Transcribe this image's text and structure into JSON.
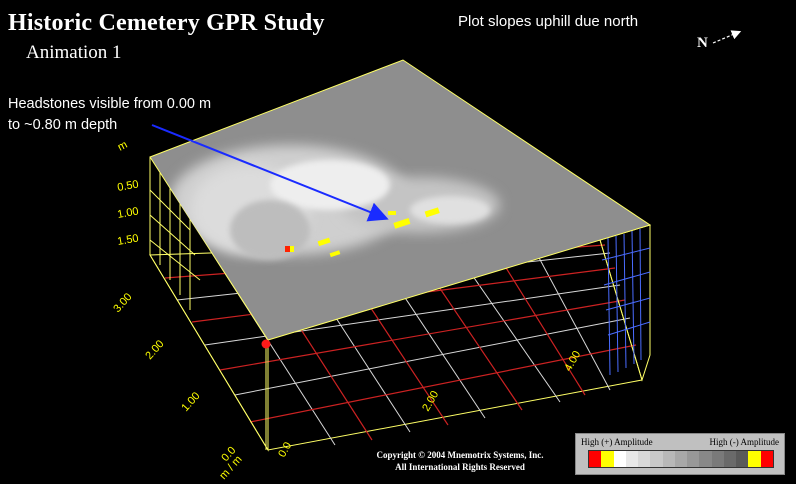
{
  "title": "Historic Cemetery GPR Study",
  "subtitle": "Animation 1",
  "slope_note": "Plot slopes uphill due north",
  "north_label": "N",
  "annotation": {
    "line1": "Headstones visible from 0.00 m",
    "line2": "to ~0.80 m depth"
  },
  "depth_axis": {
    "unit": "m",
    "ticks": [
      "0.50",
      "1.00",
      "1.50"
    ]
  },
  "left_axis": {
    "ticks": [
      "3.00",
      "2.00",
      "1.00",
      "0.0"
    ],
    "unit": "m / m"
  },
  "bottom_axis": {
    "ticks": [
      "0.0",
      "2.00",
      "4.00"
    ]
  },
  "copyright": {
    "line1": "Copyright © 2004 Mnemotrix Systems, Inc.",
    "line2": "All International Rights Reserved"
  },
  "legend": {
    "left_label": "High (+) Amplitude",
    "right_label": "High (-) Amplitude",
    "colors": [
      "#ff0000",
      "#ffff00",
      "#ffffff",
      "#e8e8e8",
      "#d8d8d8",
      "#c8c8c8",
      "#b8b8b8",
      "#a8a8a8",
      "#989898",
      "#888888",
      "#7a7a7a",
      "#6a6a6a",
      "#5a5a5a",
      "#ffff00",
      "#ff0000"
    ]
  }
}
